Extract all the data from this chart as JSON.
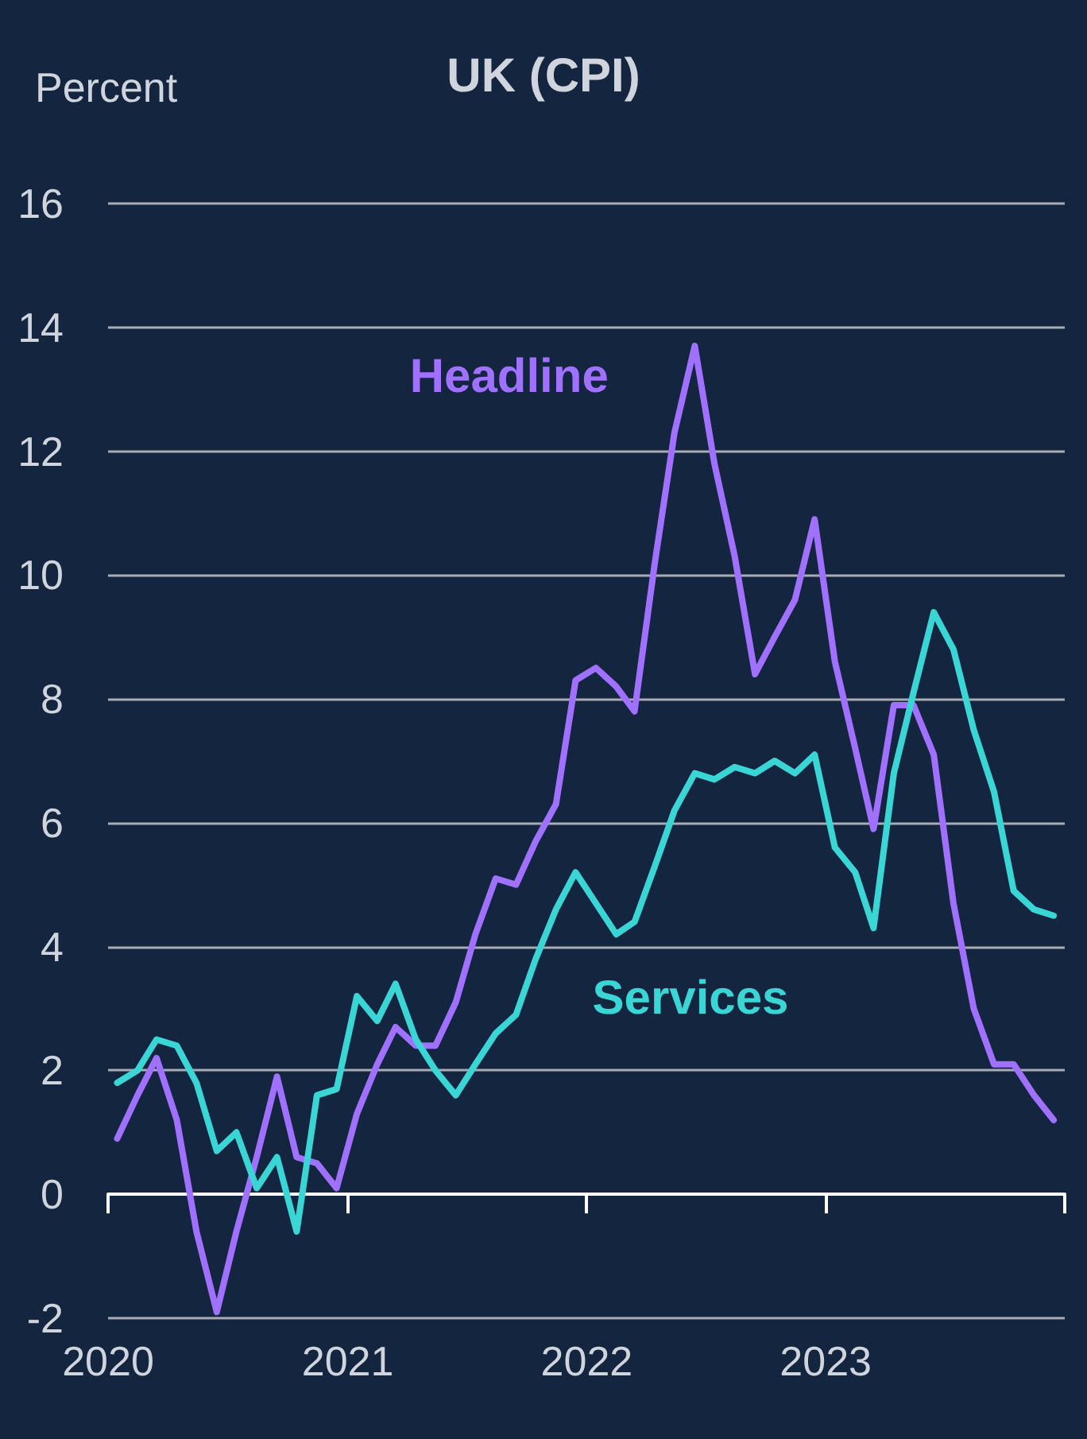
{
  "chart_data": {
    "type": "line",
    "title": "UK (CPI)",
    "ylabel": "Percent",
    "x": [
      "2020-01-15",
      "2020-02-15",
      "2020-03-15",
      "2020-04-15",
      "2020-05-15",
      "2020-06-15",
      "2020-07-15",
      "2020-08-15",
      "2020-09-15",
      "2020-10-15",
      "2020-11-15",
      "2020-12-15",
      "2021-01-15",
      "2021-02-15",
      "2021-03-15",
      "2021-04-15",
      "2021-05-15",
      "2021-06-15",
      "2021-07-15",
      "2021-08-15",
      "2021-09-15",
      "2021-10-15",
      "2021-11-15",
      "2021-12-15",
      "2022-01-15",
      "2022-02-15",
      "2022-03-15",
      "2022-04-15",
      "2022-05-15",
      "2022-06-15",
      "2022-07-15",
      "2022-08-15",
      "2022-09-15",
      "2022-10-15",
      "2022-11-15",
      "2022-12-15",
      "2023-01-15",
      "2023-02-15",
      "2023-03-15",
      "2023-04-15",
      "2023-05-15",
      "2023-06-15",
      "2023-07-15",
      "2023-08-15",
      "2023-09-15",
      "2023-10-15",
      "2023-11-15",
      "2023-12-15"
    ],
    "series": [
      {
        "name": "Headline",
        "color": "#a070ff",
        "values": [
          0.9,
          1.6,
          2.2,
          1.2,
          -0.6,
          -1.9,
          -0.6,
          0.6,
          1.9,
          0.6,
          0.5,
          0.1,
          1.3,
          2.1,
          2.7,
          2.4,
          2.4,
          3.1,
          4.2,
          5.1,
          5.0,
          5.7,
          6.3,
          8.3,
          8.5,
          8.2,
          7.8,
          10.2,
          12.3,
          13.7,
          11.8,
          10.3,
          8.4,
          9.0,
          9.6,
          10.9,
          8.6,
          7.2,
          5.9,
          7.9,
          7.9,
          7.1,
          4.7,
          3.0,
          2.1,
          2.1,
          1.6,
          1.2
        ]
      },
      {
        "name": "Services",
        "color": "#3ad6d6",
        "values": [
          1.8,
          2.0,
          2.5,
          2.4,
          1.8,
          0.7,
          1.0,
          0.1,
          0.6,
          -0.6,
          1.6,
          1.7,
          3.2,
          2.8,
          3.4,
          2.5,
          2.0,
          1.6,
          2.1,
          2.6,
          2.9,
          3.8,
          4.6,
          5.2,
          4.7,
          4.2,
          4.4,
          5.3,
          6.2,
          6.8,
          6.7,
          6.9,
          6.8,
          7.0,
          6.8,
          7.1,
          5.6,
          5.2,
          4.3,
          6.8,
          8.1,
          9.4,
          8.8,
          7.5,
          6.5,
          4.9,
          4.6,
          4.5
        ]
      }
    ],
    "xlim": [
      "2020-01-01",
      "2024-01-01"
    ],
    "xticks": [
      {
        "value": "2020",
        "label": "2020"
      },
      {
        "value": "2021",
        "label": "2021"
      },
      {
        "value": "2022",
        "label": "2022"
      },
      {
        "value": "2023",
        "label": "2023"
      },
      {
        "value": "2024",
        "label": null
      }
    ],
    "ylim": [
      -2,
      16
    ],
    "yticks": [
      -2,
      0,
      2,
      4,
      6,
      8,
      10,
      12,
      14,
      16
    ],
    "grid": "y",
    "legend": false,
    "marker": "none",
    "line_style": "solid"
  }
}
